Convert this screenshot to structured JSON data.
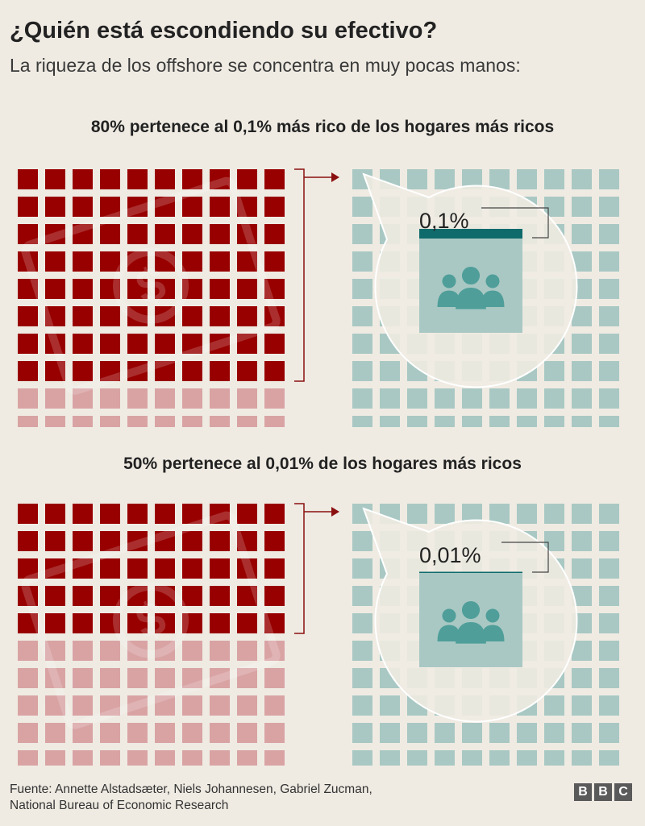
{
  "title": "¿Quién está escondiendo su efectivo?",
  "subtitle": "La riqueza de los offshore se concentra en muy pocas manos:",
  "chart_data": [
    {
      "type": "waffle",
      "title": "80% pertenece al 0,1% más rico de los hogares más ricos",
      "grid": {
        "rows": 10,
        "cols": 10
      },
      "share_of_offshore_wealth_percent": 80,
      "share_of_households_percent": 0.1,
      "callout_label": "0,1%",
      "colors": {
        "filled": "#980000",
        "empty": "#d9a3a4",
        "households": "#a9c8c3",
        "highlight": "#0f6b6b"
      }
    },
    {
      "type": "waffle",
      "title": "50% pertenece al 0,01% de los hogares más ricos",
      "grid": {
        "rows": 10,
        "cols": 10
      },
      "share_of_offshore_wealth_percent": 50,
      "share_of_households_percent": 0.01,
      "callout_label": "0,01%",
      "colors": {
        "filled": "#980000",
        "empty": "#d9a3a4",
        "households": "#a9c8c3",
        "highlight": "#0f6b6b"
      }
    }
  ],
  "footer": {
    "line1": "Fuente: Annette  Alstadsæter, Niels Johannesen, Gabriel Zucman,",
    "line2": "National Bureau of Economic Research"
  },
  "logo": [
    "B",
    "B",
    "C"
  ],
  "icons": {
    "watermark": "dollar-bill-icon",
    "people": "people-group-icon",
    "arrow": "arrow-right-icon"
  }
}
